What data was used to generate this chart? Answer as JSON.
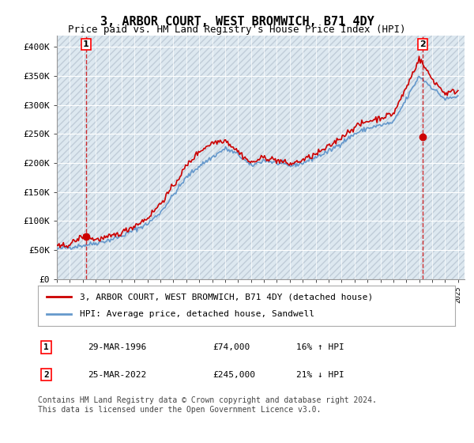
{
  "title": "3, ARBOR COURT, WEST BROMWICH, B71 4DY",
  "subtitle": "Price paid vs. HM Land Registry's House Price Index (HPI)",
  "ylabel": "",
  "xlim_start": 1994,
  "xlim_end": 2025.5,
  "ylim": [
    0,
    420000
  ],
  "yticks": [
    0,
    50000,
    100000,
    150000,
    200000,
    250000,
    300000,
    350000,
    400000
  ],
  "ytick_labels": [
    "£0",
    "£50K",
    "£100K",
    "£150K",
    "£200K",
    "£250K",
    "£300K",
    "£350K",
    "£400K"
  ],
  "background_color": "#ffffff",
  "plot_bg_color": "#e8f0f8",
  "hatch_color": "#c8d0d8",
  "grid_color": "#ffffff",
  "red_line_color": "#cc0000",
  "blue_line_color": "#6699cc",
  "marker1_x": 1996.25,
  "marker1_y": 74000,
  "marker2_x": 2022.25,
  "marker2_y": 245000,
  "dashed_line1_x": 1996.25,
  "dashed_line2_x": 2022.25,
  "label1_text": "1",
  "label2_text": "2",
  "legend_line1": "3, ARBOR COURT, WEST BROMWICH, B71 4DY (detached house)",
  "legend_line2": "HPI: Average price, detached house, Sandwell",
  "table_row1": [
    "1",
    "29-MAR-1996",
    "£74,000",
    "16% ↑ HPI"
  ],
  "table_row2": [
    "2",
    "25-MAR-2022",
    "£245,000",
    "21% ↓ HPI"
  ],
  "footer": "Contains HM Land Registry data © Crown copyright and database right 2024.\nThis data is licensed under the Open Government Licence v3.0.",
  "title_fontsize": 11,
  "subtitle_fontsize": 9,
  "tick_fontsize": 8,
  "legend_fontsize": 8,
  "table_fontsize": 8,
  "footer_fontsize": 7
}
